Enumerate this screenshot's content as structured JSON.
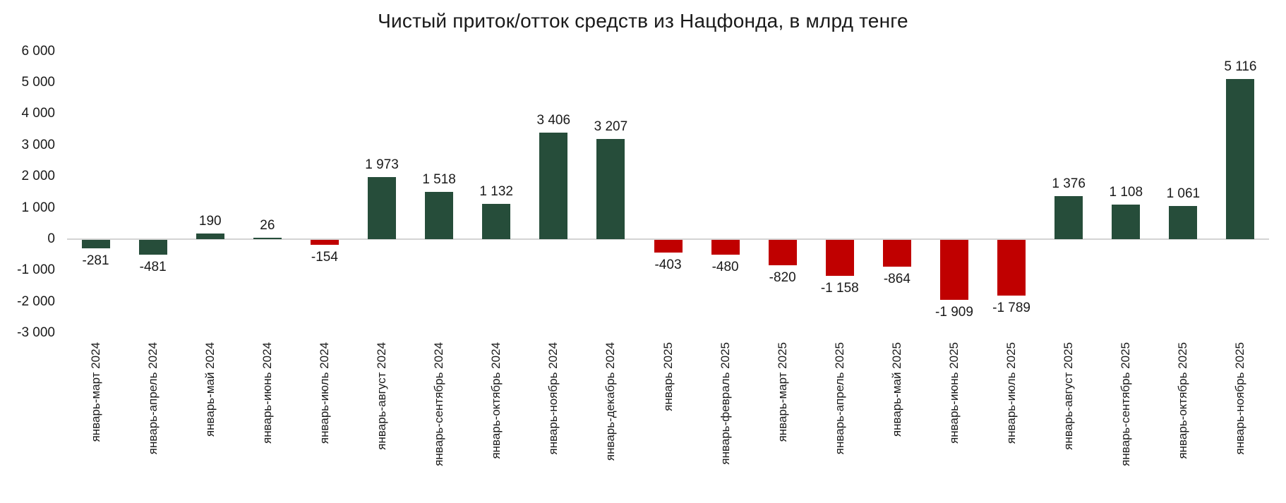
{
  "chart_data": {
    "type": "bar",
    "title": "Чистый приток/отток средств из Нацфонда, в млрд тенге",
    "xlabel": "",
    "ylabel": "",
    "ylim": [
      -3000,
      6000
    ],
    "yticks": [
      6000,
      5000,
      4000,
      3000,
      2000,
      1000,
      0,
      -1000,
      -2000,
      -3000
    ],
    "ytick_labels": [
      "6 000",
      "5 000",
      "4 000",
      "3 000",
      "2 000",
      "1 000",
      "0",
      "-1 000",
      "-2 000",
      "-3 000"
    ],
    "grid": false,
    "legend": null,
    "categories": [
      "январь-март 2024",
      "январь-апрель 2024",
      "январь-май 2024",
      "январь-июнь 2024",
      "январь-июль 2024",
      "январь-август 2024",
      "январь-сентябрь 2024",
      "январь-октябрь 2024",
      "январь-ноябрь 2024",
      "январь-декабрь 2024",
      "январь 2025",
      "январь-февраль 2025",
      "январь-март 2025",
      "январь-апрель 2025",
      "январь-май 2025",
      "январь-июнь 2025",
      "январь-июль 2025",
      "январь-август 2025",
      "январь-сентябрь 2025",
      "январь-октябрь 2025",
      "январь-ноябрь 2025"
    ],
    "values": [
      -281,
      -481,
      190,
      26,
      -154,
      1973,
      1518,
      1132,
      3406,
      3207,
      -403,
      -480,
      -820,
      -1158,
      -864,
      -1909,
      -1789,
      1376,
      1108,
      1061,
      5116
    ],
    "value_labels": [
      "-281",
      "-481",
      "190",
      "26",
      "-154",
      "1 973",
      "1 518",
      "1 132",
      "3 406",
      "3 207",
      "-403",
      "-480",
      "-820",
      "-1 158",
      "-864",
      "-1 909",
      "-1 789",
      "1 376",
      "1 108",
      "1 061",
      "5 116"
    ],
    "bar_colors": [
      "green",
      "green",
      "green",
      "green",
      "red",
      "green",
      "green",
      "green",
      "green",
      "green",
      "red",
      "red",
      "red",
      "red",
      "red",
      "red",
      "red",
      "green",
      "green",
      "green",
      "green"
    ]
  },
  "colors": {
    "green": "#264d3a",
    "red": "#c00000",
    "axis": "#d4d4d4",
    "text": "#1a1a1a"
  }
}
